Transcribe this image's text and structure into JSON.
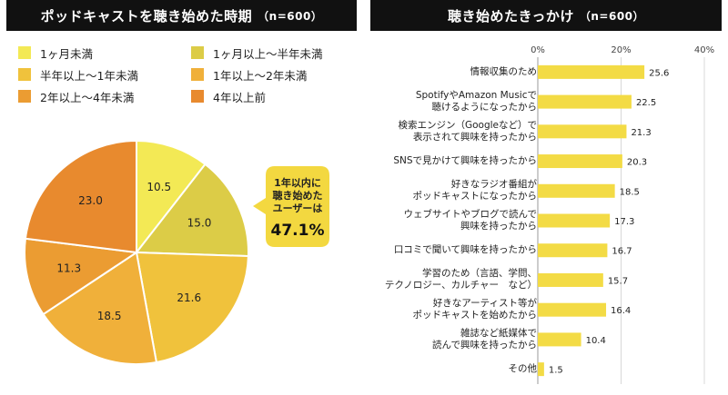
{
  "left_panel": {
    "title": "ポッドキャストを聴き始めた時期",
    "n_label": "（n=600）",
    "callout": {
      "lines": [
        "1年以内に",
        "聴き始めた",
        "ユーザーは"
      ],
      "value": "47.1%"
    }
  },
  "right_panel": {
    "title": "聴き始めたきっかけ",
    "n_label": "（n=600）"
  },
  "chart_data": [
    {
      "type": "pie",
      "title": "ポッドキャストを聴き始めた時期",
      "categories": [
        "1ヶ月未満",
        "1ヶ月以上～半年未満",
        "半年以上～1年未満",
        "1年以上～2年未満",
        "2年以上～4年未満",
        "4年以上前"
      ],
      "values": [
        10.5,
        15.0,
        21.6,
        18.5,
        11.3,
        23.0
      ],
      "colors": [
        "#f3e955",
        "#dccc47",
        "#f0c23c",
        "#f0b03a",
        "#eb9c32",
        "#e88a2e"
      ],
      "legend": "top"
    },
    {
      "type": "bar",
      "orientation": "horizontal",
      "title": "聴き始めたきっかけ",
      "categories": [
        [
          "情報収集のため"
        ],
        [
          "SpotifyやAmazon Musicで",
          "聴けるようになったから"
        ],
        [
          "検索エンジン（Googleなど）で",
          "表示されて興味を持ったから"
        ],
        [
          "SNSで見かけて興味を持ったから"
        ],
        [
          "好きなラジオ番組が",
          "ポッドキャストになったから"
        ],
        [
          "ウェブサイトやブログで読んで",
          "興味を持ったから"
        ],
        [
          "口コミで聞いて興味を持ったから"
        ],
        [
          "学習のため（言語、学問、",
          "テクノロジー、カルチャー　など）"
        ],
        [
          "好きなアーティスト等が",
          "ポッドキャストを始めたから"
        ],
        [
          "雑誌など紙媒体で",
          "読んで興味を持ったから"
        ],
        [
          "その他"
        ]
      ],
      "values": [
        25.6,
        22.5,
        21.3,
        20.3,
        18.5,
        17.3,
        16.7,
        15.7,
        16.4,
        10.4,
        1.5
      ],
      "value_labels": [
        "25.6",
        "22.5",
        "21.3",
        "20.3",
        "18.5",
        "17.3",
        "16.7",
        "15.7",
        "16.4",
        "10.4",
        "1.5"
      ],
      "xlim": [
        0,
        40
      ],
      "xticks": [
        "0%",
        "20%",
        "40%"
      ],
      "bar_color": "#f3db45",
      "grid": true
    }
  ]
}
